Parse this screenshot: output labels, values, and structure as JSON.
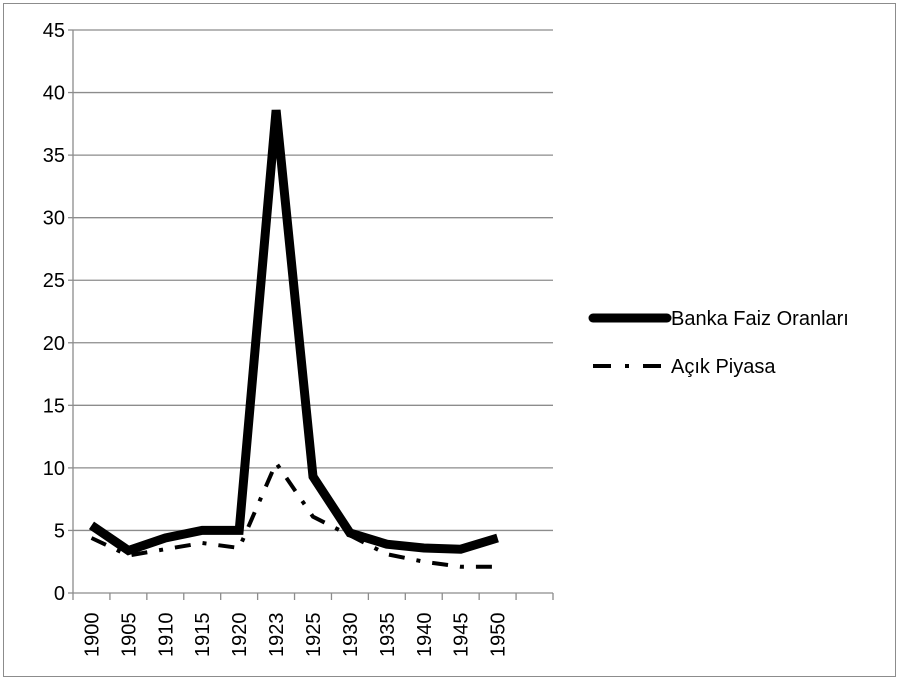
{
  "chart_data": {
    "type": "line",
    "title": "",
    "xlabel": "",
    "ylabel": "",
    "categories": [
      "1900",
      "1905",
      "1910",
      "1915",
      "1920",
      "1923",
      "1925",
      "1930",
      "1935",
      "1940",
      "1945",
      "1950"
    ],
    "ylim": [
      0,
      45
    ],
    "y_ticks": [
      0,
      5,
      10,
      15,
      20,
      25,
      30,
      35,
      40,
      45
    ],
    "grid": true,
    "legend_placement": "right",
    "series": [
      {
        "name": "Banka Faiz Oranları",
        "values": [
          5.4,
          3.4,
          4.4,
          5.0,
          5.0,
          38.6,
          9.3,
          4.8,
          3.9,
          3.6,
          3.5,
          4.4
        ],
        "color": "#000000",
        "style": "solid-thick"
      },
      {
        "name": "Açık Piyasa",
        "values": [
          4.4,
          3.0,
          3.5,
          4.0,
          3.6,
          10.4,
          6.1,
          4.6,
          3.1,
          2.5,
          2.1,
          2.1
        ],
        "color": "#000000",
        "style": "dash-dot"
      }
    ]
  }
}
